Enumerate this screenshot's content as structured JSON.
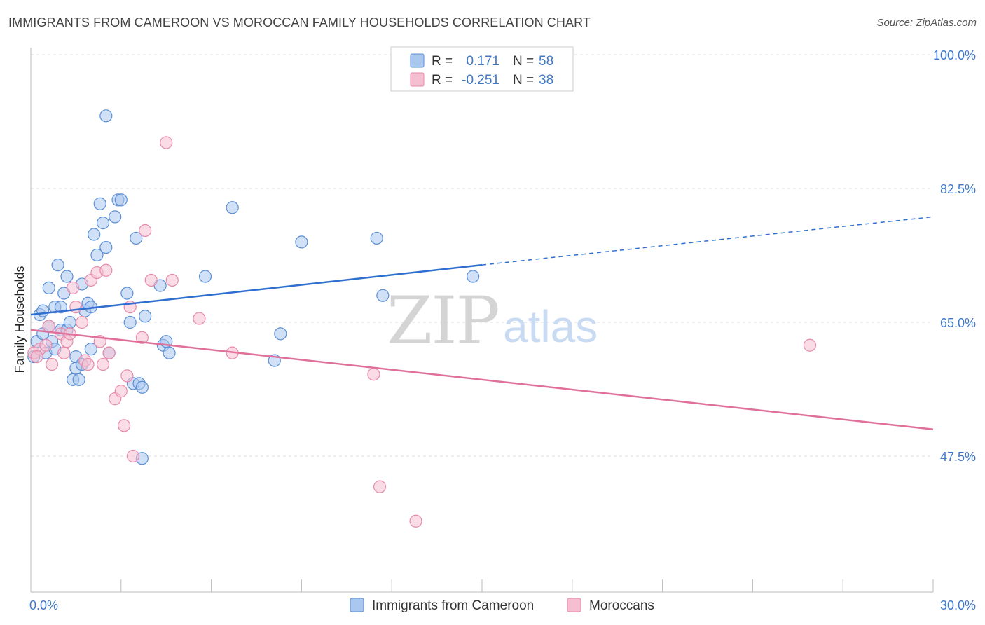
{
  "title": "IMMIGRANTS FROM CAMEROON VS MOROCCAN FAMILY HOUSEHOLDS CORRELATION CHART",
  "source": "Source: ZipAtlas.com",
  "watermark": {
    "zip": "ZIP",
    "atlas": "atlas"
  },
  "colors": {
    "blue_fill": "#a9c7ef",
    "blue_stroke": "#5b8fd6",
    "blue_line": "#2f6fcf",
    "pink_fill": "#f6bfd1",
    "pink_stroke": "#e88aaa",
    "pink_line": "#e0709a",
    "tick_text": "#3f78c9",
    "grid": "#dddddd"
  },
  "legend": {
    "r_label": "R =",
    "n_label": "N =",
    "series": [
      {
        "r": "0.171",
        "n": "58"
      },
      {
        "r": "-0.251",
        "n": "38"
      }
    ]
  },
  "bottom_legend": [
    {
      "label": "Immigrants from Cameroon"
    },
    {
      "label": "Moroccans"
    }
  ],
  "chart_data": {
    "type": "scatter",
    "title": "IMMIGRANTS FROM CAMEROON VS MOROCCAN FAMILY HOUSEHOLDS CORRELATION CHART",
    "xlabel": "",
    "ylabel": "Family Households",
    "xlim": [
      0,
      30
    ],
    "ylim": [
      30,
      100
    ],
    "x_tick_labels": [
      "0.0%",
      "30.0%"
    ],
    "y_ticks": [
      47.5,
      65.0,
      82.5,
      100.0
    ],
    "y_tick_labels": [
      "47.5%",
      "65.0%",
      "82.5%",
      "100.0%"
    ],
    "grid": true,
    "series": [
      {
        "name": "Immigrants from Cameroon",
        "color": "blue",
        "trend": {
          "x": [
            0,
            15
          ],
          "y": [
            66.0,
            72.5
          ],
          "dashed_to": [
            30,
            78.8
          ]
        },
        "points": [
          [
            0.1,
            60.5
          ],
          [
            0.2,
            62.5
          ],
          [
            0.3,
            66.0
          ],
          [
            0.4,
            63.5
          ],
          [
            0.4,
            66.5
          ],
          [
            0.5,
            61.0
          ],
          [
            0.6,
            69.5
          ],
          [
            0.6,
            64.5
          ],
          [
            0.7,
            62.5
          ],
          [
            0.8,
            61.5
          ],
          [
            0.8,
            67.0
          ],
          [
            0.9,
            72.5
          ],
          [
            1.0,
            64.0
          ],
          [
            1.0,
            67.0
          ],
          [
            1.1,
            68.8
          ],
          [
            1.2,
            64.0
          ],
          [
            1.2,
            71.0
          ],
          [
            1.3,
            65.0
          ],
          [
            1.4,
            57.5
          ],
          [
            1.5,
            59.0
          ],
          [
            1.5,
            60.5
          ],
          [
            1.6,
            57.5
          ],
          [
            1.7,
            70.0
          ],
          [
            1.7,
            59.5
          ],
          [
            1.8,
            66.5
          ],
          [
            1.9,
            67.5
          ],
          [
            2.0,
            67.0
          ],
          [
            2.0,
            61.5
          ],
          [
            2.1,
            76.5
          ],
          [
            2.2,
            73.8
          ],
          [
            2.3,
            80.5
          ],
          [
            2.4,
            78.0
          ],
          [
            2.5,
            74.8
          ],
          [
            2.5,
            92.0
          ],
          [
            2.6,
            61.0
          ],
          [
            2.8,
            78.8
          ],
          [
            2.9,
            81.0
          ],
          [
            3.0,
            81.0
          ],
          [
            3.2,
            68.8
          ],
          [
            3.3,
            65.0
          ],
          [
            3.4,
            57.0
          ],
          [
            3.5,
            76.0
          ],
          [
            3.6,
            57.0
          ],
          [
            3.7,
            56.5
          ],
          [
            3.7,
            47.2
          ],
          [
            3.8,
            65.8
          ],
          [
            4.3,
            69.8
          ],
          [
            4.4,
            62.0
          ],
          [
            4.5,
            62.5
          ],
          [
            4.6,
            61.0
          ],
          [
            5.8,
            71.0
          ],
          [
            6.7,
            80.0
          ],
          [
            8.1,
            60.0
          ],
          [
            8.3,
            63.5
          ],
          [
            9.0,
            75.5
          ],
          [
            11.5,
            76.0
          ],
          [
            11.7,
            68.5
          ],
          [
            14.7,
            71.0
          ]
        ]
      },
      {
        "name": "Moroccans",
        "color": "pink",
        "trend": {
          "x": [
            0,
            30
          ],
          "y": [
            64.0,
            51.0
          ]
        },
        "points": [
          [
            0.1,
            61.0
          ],
          [
            0.3,
            61.5
          ],
          [
            0.5,
            62.0
          ],
          [
            0.6,
            64.5
          ],
          [
            0.7,
            59.5
          ],
          [
            1.0,
            63.5
          ],
          [
            1.1,
            61.0
          ],
          [
            1.2,
            62.5
          ],
          [
            1.3,
            63.5
          ],
          [
            1.4,
            69.5
          ],
          [
            1.5,
            67.0
          ],
          [
            1.7,
            65.0
          ],
          [
            1.8,
            60.0
          ],
          [
            1.9,
            59.5
          ],
          [
            2.0,
            70.5
          ],
          [
            2.2,
            71.5
          ],
          [
            2.3,
            62.5
          ],
          [
            2.4,
            59.5
          ],
          [
            2.5,
            71.8
          ],
          [
            2.6,
            61.0
          ],
          [
            2.8,
            55.0
          ],
          [
            3.0,
            56.0
          ],
          [
            3.1,
            51.5
          ],
          [
            3.2,
            58.0
          ],
          [
            3.3,
            67.0
          ],
          [
            3.4,
            47.5
          ],
          [
            3.7,
            63.0
          ],
          [
            3.8,
            77.0
          ],
          [
            4.0,
            70.5
          ],
          [
            4.5,
            88.5
          ],
          [
            4.7,
            70.5
          ],
          [
            5.6,
            65.5
          ],
          [
            6.7,
            61.0
          ],
          [
            11.4,
            58.2
          ],
          [
            11.6,
            43.5
          ],
          [
            12.8,
            39.0
          ],
          [
            25.9,
            62.0
          ],
          [
            0.2,
            60.5
          ]
        ]
      }
    ]
  }
}
